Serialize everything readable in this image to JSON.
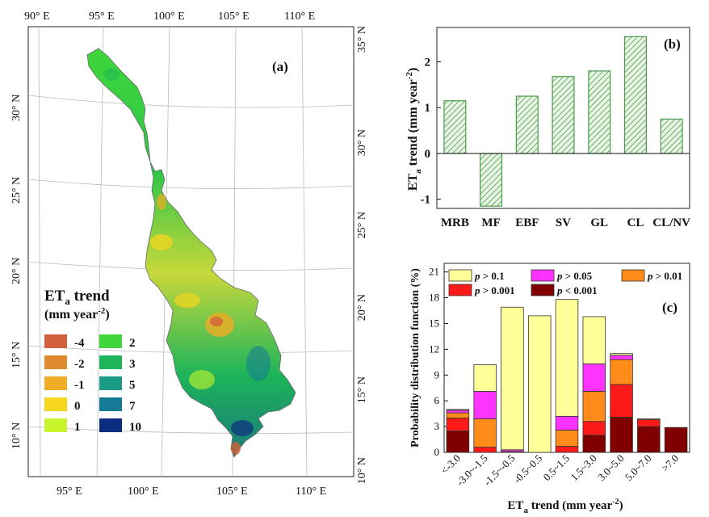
{
  "colors": {
    "hatch": "#4c9a4c",
    "bar_fill": "#e9f5e4",
    "p01": "#ffff99",
    "p005": "#ff33ff",
    "p001": "#ff8c1a",
    "p0001": "#ff1a1a",
    "plt0001": "#800000"
  },
  "map": {
    "panel_label": "(a)",
    "top_ticks": [
      "90° E",
      "95° E",
      "100° E",
      "105° E",
      "110° E"
    ],
    "bottom_ticks": [
      "95° E",
      "100° E",
      "105° E",
      "110° E"
    ],
    "left_ticks": [
      "30° N",
      "25° N",
      "20° N",
      "15° N",
      "10° N"
    ],
    "right_ticks": [
      "35° N",
      "30° N",
      "25° N",
      "20° N",
      "15° N",
      "10° N"
    ],
    "legend": {
      "title_main": "ET",
      "title_sub": "a",
      "title_rest": " trend",
      "unit_prefix": "(mm year",
      "unit_sup": "-2",
      "unit_suffix": ")",
      "items": [
        {
          "label": "-4",
          "color": "#d2603c"
        },
        {
          "label": "-2",
          "color": "#e08a2e"
        },
        {
          "label": "-1",
          "color": "#eead24"
        },
        {
          "label": "0",
          "color": "#f5d61e"
        },
        {
          "label": "1",
          "color": "#c8f52a"
        },
        {
          "label": "2",
          "color": "#3ed63a"
        },
        {
          "label": "3",
          "color": "#1db45a"
        },
        {
          "label": "5",
          "color": "#1b9a86"
        },
        {
          "label": "7",
          "color": "#157a94"
        },
        {
          "label": "10",
          "color": "#0b2d80"
        }
      ]
    }
  },
  "chart_data": [
    {
      "type": "bar",
      "panel_label": "(b)",
      "categories": [
        "MRB",
        "MF",
        "EBF",
        "SV",
        "GL",
        "CL",
        "CL/NV"
      ],
      "values": [
        1.15,
        -1.15,
        1.25,
        1.68,
        1.8,
        2.55,
        0.75
      ],
      "ylabel_main": "ET",
      "ylabel_sub": "a",
      "ylabel_rest": " trend (mm year",
      "ylabel_sup": "-2",
      "ylabel_end": ")",
      "ylim": [
        -1.2,
        2.75
      ],
      "yticks": [
        "-1",
        "0",
        "1",
        "2"
      ]
    },
    {
      "type": "bar",
      "stacked": true,
      "panel_label": "(c)",
      "categories": [
        "<-3.0",
        "-3.0~-1.5",
        "-1.5~-0.5",
        "-0.5~0.5",
        "0.5~1.5",
        "1.5~3.0",
        "3.0~5.0",
        "5.0~7.0",
        ">7.0"
      ],
      "series": [
        {
          "name": "p < 0.001",
          "values": [
            2.5,
            0,
            0,
            0,
            0,
            2.0,
            4.1,
            3.0,
            2.9
          ]
        },
        {
          "name": "p > 0.001",
          "values": [
            1.5,
            0.6,
            0,
            0,
            0.7,
            1.6,
            3.8,
            0.8,
            0
          ]
        },
        {
          "name": "p > 0.01",
          "values": [
            0.6,
            3.3,
            0.1,
            0,
            1.9,
            3.5,
            2.9,
            0.1,
            0
          ]
        },
        {
          "name": "p > 0.05",
          "values": [
            0.3,
            3.2,
            0.2,
            0,
            1.6,
            3.2,
            0.5,
            0,
            0
          ]
        },
        {
          "name": "p > 0.1",
          "values": [
            0.1,
            3.1,
            16.6,
            15.9,
            13.6,
            5.5,
            0.2,
            0,
            0
          ]
        }
      ],
      "legend_prefix": "p",
      "legend_items": [
        " > 0.1",
        " > 0.05",
        " > 0.01",
        " > 0.001",
        " < 0.001"
      ],
      "ylabel": "Probability distribution function (%)",
      "xlabel_main": "ET",
      "xlabel_sub": "a",
      "xlabel_rest": " trend (mm year",
      "xlabel_sup": "-2",
      "xlabel_end": ")",
      "ylim": [
        0,
        22
      ],
      "yticks": [
        "0",
        "3",
        "6",
        "9",
        "12",
        "15",
        "18",
        "21"
      ]
    }
  ]
}
